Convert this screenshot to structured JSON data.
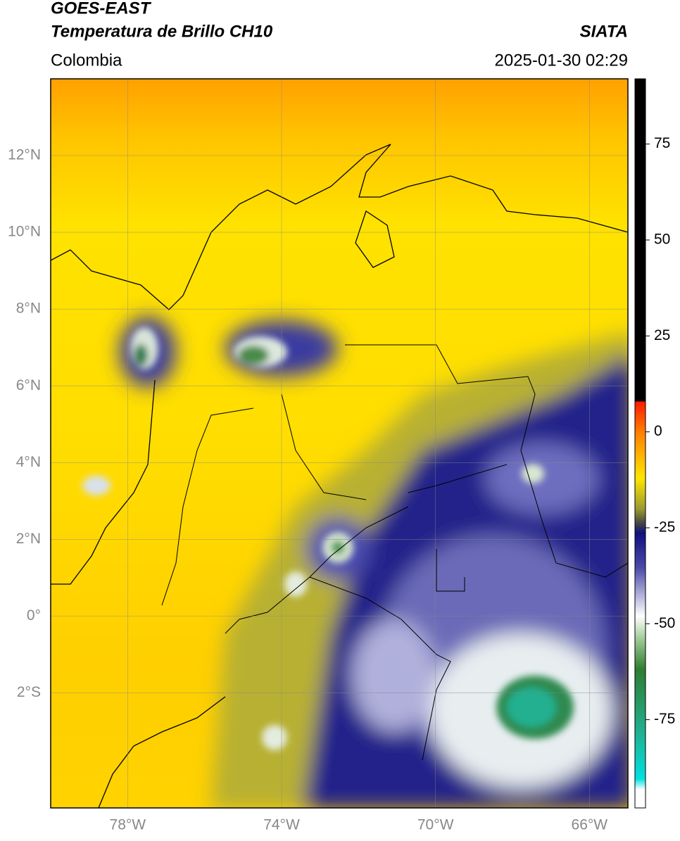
{
  "header": {
    "title": "GOES-EAST",
    "subtitle": "Temperatura de Brillo CH10",
    "region": "Colombia",
    "source": "SIATA",
    "datetime": "2025-01-30 02:29"
  },
  "map": {
    "lonlim": [
      -80,
      -65
    ],
    "latlim": [
      -5,
      14
    ],
    "lon_ticks": [
      {
        "value": -78,
        "label": "78°W"
      },
      {
        "value": -74,
        "label": "74°W"
      },
      {
        "value": -70,
        "label": "70°W"
      },
      {
        "value": -66,
        "label": "66°W"
      }
    ],
    "lat_ticks": [
      {
        "value": 12,
        "label": "12°N"
      },
      {
        "value": 10,
        "label": "10°N"
      },
      {
        "value": 8,
        "label": "8°N"
      },
      {
        "value": 6,
        "label": "6°N"
      },
      {
        "value": 4,
        "label": "4°N"
      },
      {
        "value": 2,
        "label": "2°N"
      },
      {
        "value": 0,
        "label": "0°"
      },
      {
        "value": -2,
        "label": "2°S"
      }
    ],
    "grid": true
  },
  "colorbar": {
    "lim": [
      -98,
      92
    ],
    "ticks": [
      75,
      50,
      25,
      0,
      -25,
      -50,
      -75
    ]
  }
}
